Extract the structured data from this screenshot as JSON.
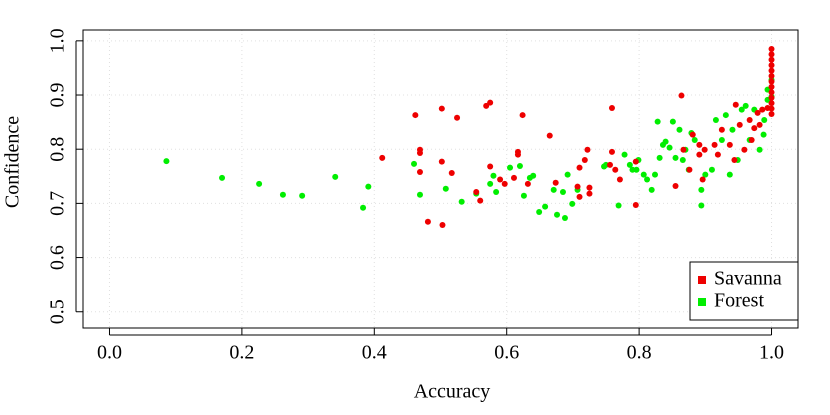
{
  "chart_data": {
    "type": "scatter",
    "xlabel": "Accuracy",
    "ylabel": "Confidence",
    "xlim": [
      -0.04,
      1.04
    ],
    "ylim": [
      0.47,
      1.02
    ],
    "xticks": [
      {
        "value": 0,
        "label": "0.0"
      },
      0.2,
      0.4,
      0.6,
      0.8,
      {
        "value": 1,
        "label": "1.0"
      }
    ],
    "yticks": [
      0.5,
      0.6,
      0.7,
      0.8,
      0.9,
      {
        "value": 1,
        "label": "1.0"
      }
    ],
    "grid": true,
    "legend": "bottom-right",
    "series": [
      {
        "name": "Forest",
        "color": "#00ee00",
        "x": [
          0.086,
          0.17,
          0.226,
          0.262,
          0.291,
          0.341,
          0.383,
          0.391,
          0.46,
          0.469,
          0.508,
          0.532,
          0.554,
          0.575,
          0.58,
          0.584,
          0.605,
          0.62,
          0.626,
          0.635,
          0.64,
          0.649,
          0.658,
          0.671,
          0.676,
          0.685,
          0.688,
          0.692,
          0.699,
          0.707,
          0.747,
          0.75,
          0.769,
          0.778,
          0.786,
          0.79,
          0.796,
          0.799,
          0.807,
          0.812,
          0.819,
          0.824,
          0.828,
          0.831,
          0.836,
          0.84,
          0.846,
          0.851,
          0.855,
          0.861,
          0.866,
          0.87,
          0.875,
          0.879,
          0.884,
          0.894,
          0.894,
          0.9,
          0.91,
          0.916,
          0.925,
          0.931,
          0.937,
          0.941,
          0.949,
          0.955,
          0.961,
          0.967,
          0.974,
          0.982,
          0.988,
          0.994,
          0.994,
          1.0,
          1.0,
          0.989
        ],
        "values": [
          0.778,
          0.747,
          0.736,
          0.716,
          0.714,
          0.749,
          0.692,
          0.731,
          0.773,
          0.716,
          0.727,
          0.703,
          0.718,
          0.736,
          0.751,
          0.721,
          0.766,
          0.769,
          0.714,
          0.747,
          0.751,
          0.684,
          0.694,
          0.725,
          0.679,
          0.721,
          0.673,
          0.753,
          0.699,
          0.725,
          0.768,
          0.771,
          0.696,
          0.79,
          0.771,
          0.762,
          0.762,
          0.78,
          0.753,
          0.744,
          0.725,
          0.753,
          0.851,
          0.784,
          0.808,
          0.814,
          0.803,
          0.851,
          0.784,
          0.836,
          0.78,
          0.799,
          0.762,
          0.83,
          0.817,
          0.725,
          0.696,
          0.753,
          0.762,
          0.854,
          0.817,
          0.863,
          0.753,
          0.836,
          0.78,
          0.873,
          0.88,
          0.817,
          0.873,
          0.799,
          0.827,
          0.91,
          0.891,
          0.928,
          0.897,
          0.854
        ]
      },
      {
        "name": "Savanna",
        "color": "#ee0000",
        "x": [
          0.412,
          0.462,
          0.469,
          0.469,
          0.469,
          0.481,
          0.502,
          0.502,
          0.503,
          0.517,
          0.525,
          0.554,
          0.56,
          0.569,
          0.575,
          0.575,
          0.59,
          0.597,
          0.611,
          0.617,
          0.617,
          0.624,
          0.632,
          0.665,
          0.674,
          0.707,
          0.71,
          0.71,
          0.718,
          0.722,
          0.725,
          0.725,
          0.759,
          0.756,
          0.759,
          0.764,
          0.771,
          0.795,
          0.795,
          0.855,
          0.864,
          0.876,
          0.891,
          0.891,
          0.896,
          0.899,
          0.914,
          0.919,
          0.925,
          0.937,
          0.944,
          0.946,
          0.952,
          0.959,
          0.967,
          0.97,
          0.974,
          0.979,
          0.982,
          0.986,
          0.994,
          0.867,
          0.881,
          1.0,
          1.0,
          1.0,
          1.0,
          1.0,
          1.0,
          1.0,
          1.0,
          1.0,
          1.0,
          1.0,
          1.0,
          1.0
        ],
        "values": [
          0.784,
          0.863,
          0.799,
          0.793,
          0.758,
          0.666,
          0.875,
          0.777,
          0.66,
          0.756,
          0.858,
          0.721,
          0.705,
          0.88,
          0.886,
          0.768,
          0.744,
          0.736,
          0.747,
          0.795,
          0.79,
          0.863,
          0.736,
          0.825,
          0.738,
          0.731,
          0.712,
          0.766,
          0.78,
          0.799,
          0.729,
          0.718,
          0.876,
          0.771,
          0.795,
          0.762,
          0.744,
          0.697,
          0.777,
          0.732,
          0.899,
          0.762,
          0.808,
          0.79,
          0.744,
          0.799,
          0.808,
          0.79,
          0.836,
          0.808,
          0.78,
          0.882,
          0.845,
          0.799,
          0.854,
          0.817,
          0.839,
          0.867,
          0.845,
          0.873,
          0.876,
          0.799,
          0.827,
          0.985,
          0.975,
          0.965,
          0.955,
          0.945,
          0.935,
          0.925,
          0.915,
          0.905,
          0.895,
          0.885,
          0.875,
          0.865
        ]
      }
    ]
  }
}
